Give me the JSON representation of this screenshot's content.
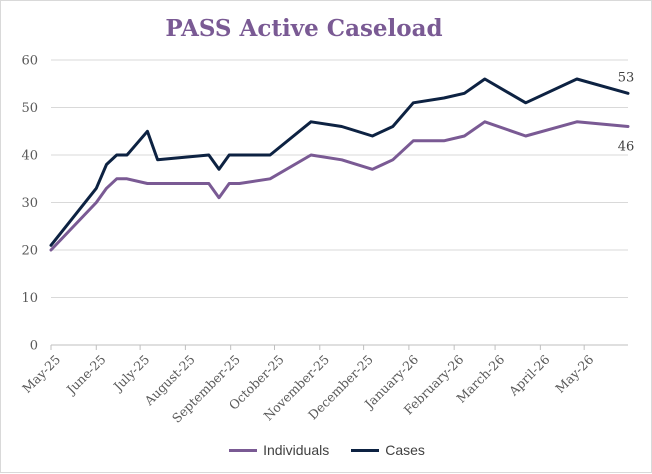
{
  "chart_data": {
    "type": "line",
    "title": "PASS Active Caseload",
    "xlabel": "",
    "ylabel": "",
    "ylim": [
      0,
      60
    ],
    "yticks": [
      0,
      10,
      20,
      30,
      40,
      50,
      60
    ],
    "xlim": [
      "2025-05-01",
      "2026-05-31"
    ],
    "x_tick_labels": [
      {
        "date": "2025-05-01",
        "label": "May-25"
      },
      {
        "date": "2025-06-01",
        "label": "June-25"
      },
      {
        "date": "2025-07-01",
        "label": "July-25"
      },
      {
        "date": "2025-08-01",
        "label": "August-25"
      },
      {
        "date": "2025-09-01",
        "label": "September-25"
      },
      {
        "date": "2025-10-01",
        "label": "October-25"
      },
      {
        "date": "2025-11-01",
        "label": "November-25"
      },
      {
        "date": "2025-12-01",
        "label": "December-25"
      },
      {
        "date": "2026-01-01",
        "label": "January-26"
      },
      {
        "date": "2026-02-01",
        "label": "February-26"
      },
      {
        "date": "2026-03-01",
        "label": "March-26"
      },
      {
        "date": "2026-04-01",
        "label": "April-26"
      },
      {
        "date": "2026-05-01",
        "label": "May-26"
      }
    ],
    "grid": true,
    "legend_position": "bottom",
    "series": [
      {
        "name": "Individuals",
        "color": "#7a5a94",
        "end_label": "46",
        "points": [
          {
            "x": "2025-05-01",
            "y": 20
          },
          {
            "x": "2025-06-01",
            "y": 30
          },
          {
            "x": "2025-06-08",
            "y": 33
          },
          {
            "x": "2025-06-15",
            "y": 35
          },
          {
            "x": "2025-06-22",
            "y": 35
          },
          {
            "x": "2025-07-06",
            "y": 34
          },
          {
            "x": "2025-07-13",
            "y": 34
          },
          {
            "x": "2025-07-20",
            "y": 34
          },
          {
            "x": "2025-08-03",
            "y": 34
          },
          {
            "x": "2025-08-17",
            "y": 34
          },
          {
            "x": "2025-08-24",
            "y": 31
          },
          {
            "x": "2025-08-31",
            "y": 34
          },
          {
            "x": "2025-09-07",
            "y": 34
          },
          {
            "x": "2025-09-28",
            "y": 35
          },
          {
            "x": "2025-10-26",
            "y": 40
          },
          {
            "x": "2025-11-16",
            "y": 39
          },
          {
            "x": "2025-12-07",
            "y": 37
          },
          {
            "x": "2025-12-21",
            "y": 39
          },
          {
            "x": "2026-01-04",
            "y": 43
          },
          {
            "x": "2026-01-25",
            "y": 43
          },
          {
            "x": "2026-02-08",
            "y": 44
          },
          {
            "x": "2026-02-22",
            "y": 47
          },
          {
            "x": "2026-03-22",
            "y": 44
          },
          {
            "x": "2026-04-26",
            "y": 47
          },
          {
            "x": "2026-05-31",
            "y": 46
          }
        ]
      },
      {
        "name": "Cases",
        "color": "#0d2242",
        "end_label": "53",
        "points": [
          {
            "x": "2025-05-01",
            "y": 21
          },
          {
            "x": "2025-06-01",
            "y": 33
          },
          {
            "x": "2025-06-08",
            "y": 38
          },
          {
            "x": "2025-06-15",
            "y": 40
          },
          {
            "x": "2025-06-22",
            "y": 40
          },
          {
            "x": "2025-07-06",
            "y": 45
          },
          {
            "x": "2025-07-13",
            "y": 39
          },
          {
            "x": "2025-08-17",
            "y": 40
          },
          {
            "x": "2025-08-24",
            "y": 37
          },
          {
            "x": "2025-08-31",
            "y": 40
          },
          {
            "x": "2025-09-07",
            "y": 40
          },
          {
            "x": "2025-09-28",
            "y": 40
          },
          {
            "x": "2025-10-26",
            "y": 47
          },
          {
            "x": "2025-11-16",
            "y": 46
          },
          {
            "x": "2025-12-07",
            "y": 44
          },
          {
            "x": "2025-12-21",
            "y": 46
          },
          {
            "x": "2026-01-04",
            "y": 51
          },
          {
            "x": "2026-01-25",
            "y": 52
          },
          {
            "x": "2026-02-08",
            "y": 53
          },
          {
            "x": "2026-02-22",
            "y": 56
          },
          {
            "x": "2026-03-22",
            "y": 51
          },
          {
            "x": "2026-04-26",
            "y": 56
          },
          {
            "x": "2026-05-31",
            "y": 53
          }
        ]
      }
    ]
  }
}
